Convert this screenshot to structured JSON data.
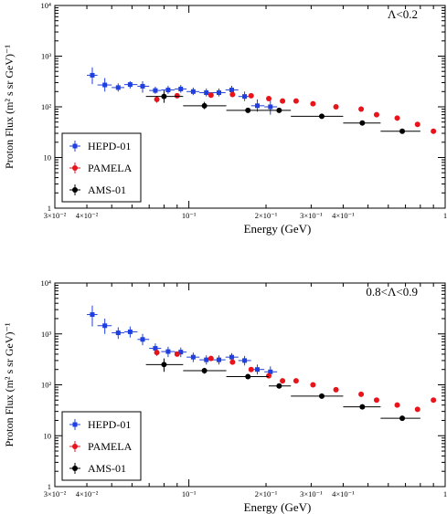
{
  "colors": {
    "hepd": "#1f3fe0",
    "pamela": "#e8141c",
    "ams": "#000000",
    "axis": "#000000",
    "legend_border": "#000000"
  },
  "chart_data": [
    {
      "type": "scatter",
      "annotation": "Λ<0.2",
      "xlabel": "Energy (GeV)",
      "ylabel": "Proton Flux (m² s sr GeV)⁻¹",
      "xscale": "log",
      "yscale": "log",
      "xlim": [
        0.03,
        1.0
      ],
      "ylim": [
        1,
        10000
      ],
      "legend": "bottom-left",
      "x_tick_labels": [
        "3×10⁻²",
        "4×10⁻²",
        "10⁻¹",
        "2×10⁻¹",
        "3×10⁻¹",
        "4×10⁻¹",
        "1"
      ],
      "y_tick_labels": [
        "1",
        "10",
        "10²",
        "10³",
        "10⁴"
      ],
      "series": [
        {
          "name": "HEPD-01",
          "key": "hepd",
          "marker": "square",
          "points": [
            {
              "x": 0.042,
              "y": 420,
              "xlo": 0.04,
              "xhi": 0.044,
              "ylo": 280,
              "yhi": 600
            },
            {
              "x": 0.047,
              "y": 270,
              "xlo": 0.044,
              "xhi": 0.05,
              "ylo": 200,
              "yhi": 370
            },
            {
              "x": 0.053,
              "y": 240,
              "xlo": 0.05,
              "xhi": 0.056,
              "ylo": 200,
              "yhi": 290
            },
            {
              "x": 0.059,
              "y": 275,
              "xlo": 0.056,
              "xhi": 0.063,
              "ylo": 230,
              "yhi": 320
            },
            {
              "x": 0.066,
              "y": 255,
              "xlo": 0.063,
              "xhi": 0.07,
              "ylo": 190,
              "yhi": 320
            },
            {
              "x": 0.074,
              "y": 210,
              "xlo": 0.07,
              "xhi": 0.078,
              "ylo": 180,
              "yhi": 250
            },
            {
              "x": 0.083,
              "y": 215,
              "xlo": 0.078,
              "xhi": 0.088,
              "ylo": 180,
              "yhi": 260
            },
            {
              "x": 0.093,
              "y": 225,
              "xlo": 0.088,
              "xhi": 0.098,
              "ylo": 190,
              "yhi": 270
            },
            {
              "x": 0.104,
              "y": 200,
              "xlo": 0.098,
              "xhi": 0.11,
              "ylo": 170,
              "yhi": 240
            },
            {
              "x": 0.117,
              "y": 190,
              "xlo": 0.11,
              "xhi": 0.124,
              "ylo": 160,
              "yhi": 230
            },
            {
              "x": 0.131,
              "y": 190,
              "xlo": 0.124,
              "xhi": 0.139,
              "ylo": 160,
              "yhi": 230
            },
            {
              "x": 0.147,
              "y": 215,
              "xlo": 0.139,
              "xhi": 0.156,
              "ylo": 180,
              "yhi": 260
            },
            {
              "x": 0.165,
              "y": 160,
              "xlo": 0.156,
              "xhi": 0.175,
              "ylo": 130,
              "yhi": 200
            },
            {
              "x": 0.185,
              "y": 105,
              "xlo": 0.175,
              "xhi": 0.197,
              "ylo": 80,
              "yhi": 140
            },
            {
              "x": 0.208,
              "y": 100,
              "xlo": 0.197,
              "xhi": 0.221,
              "ylo": 70,
              "yhi": 140
            }
          ]
        },
        {
          "name": "PAMELA",
          "key": "pamela",
          "marker": "circle",
          "points": [
            {
              "x": 0.075,
              "y": 140,
              "ylo": 120,
              "yhi": 165
            },
            {
              "x": 0.09,
              "y": 165
            },
            {
              "x": 0.122,
              "y": 170
            },
            {
              "x": 0.148,
              "y": 175
            },
            {
              "x": 0.175,
              "y": 165
            },
            {
              "x": 0.205,
              "y": 145
            },
            {
              "x": 0.232,
              "y": 130
            },
            {
              "x": 0.262,
              "y": 130
            },
            {
              "x": 0.305,
              "y": 115
            },
            {
              "x": 0.375,
              "y": 100
            },
            {
              "x": 0.47,
              "y": 90
            },
            {
              "x": 0.54,
              "y": 70
            },
            {
              "x": 0.65,
              "y": 60
            },
            {
              "x": 0.78,
              "y": 45
            },
            {
              "x": 0.9,
              "y": 33
            }
          ]
        },
        {
          "name": "AMS-01",
          "key": "ams",
          "marker": "circle",
          "points": [
            {
              "x": 0.08,
              "y": 160,
              "xlo": 0.068,
              "xhi": 0.095,
              "ylo": 120,
              "yhi": 210
            },
            {
              "x": 0.115,
              "y": 105,
              "xlo": 0.095,
              "xhi": 0.14,
              "ylo": 90,
              "yhi": 125
            },
            {
              "x": 0.17,
              "y": 85,
              "xlo": 0.14,
              "xhi": 0.205,
              "ylo": 80,
              "yhi": 92
            },
            {
              "x": 0.225,
              "y": 85,
              "xlo": 0.205,
              "xhi": 0.25,
              "ylo": 80,
              "yhi": 92
            },
            {
              "x": 0.33,
              "y": 65,
              "xlo": 0.25,
              "xhi": 0.4,
              "ylo": 61,
              "yhi": 70
            },
            {
              "x": 0.475,
              "y": 48,
              "xlo": 0.4,
              "xhi": 0.56,
              "ylo": 45,
              "yhi": 51
            },
            {
              "x": 0.68,
              "y": 33,
              "xlo": 0.56,
              "xhi": 0.8,
              "ylo": 31,
              "yhi": 35
            }
          ]
        }
      ]
    },
    {
      "type": "scatter",
      "annotation": "0.8<Λ<0.9",
      "xlabel": "Energy (GeV)",
      "ylabel": "Proton Flux (m² s sr GeV)⁻¹",
      "xscale": "log",
      "yscale": "log",
      "xlim": [
        0.03,
        1.0
      ],
      "ylim": [
        1,
        10000
      ],
      "legend": "bottom-left",
      "x_tick_labels": [
        "3×10⁻²",
        "4×10⁻²",
        "10⁻¹",
        "2×10⁻¹",
        "3×10⁻¹",
        "4×10⁻¹",
        "1"
      ],
      "y_tick_labels": [
        "1",
        "10",
        "10²",
        "10³",
        "10⁴"
      ],
      "series": [
        {
          "name": "HEPD-01",
          "key": "hepd",
          "marker": "square",
          "points": [
            {
              "x": 0.042,
              "y": 2400,
              "xlo": 0.04,
              "xhi": 0.044,
              "ylo": 1400,
              "yhi": 3600
            },
            {
              "x": 0.047,
              "y": 1450,
              "xlo": 0.044,
              "xhi": 0.05,
              "ylo": 1000,
              "yhi": 2000
            },
            {
              "x": 0.053,
              "y": 1050,
              "xlo": 0.05,
              "xhi": 0.056,
              "ylo": 800,
              "yhi": 1350
            },
            {
              "x": 0.059,
              "y": 1100,
              "xlo": 0.056,
              "xhi": 0.063,
              "ylo": 850,
              "yhi": 1400
            },
            {
              "x": 0.066,
              "y": 780,
              "xlo": 0.063,
              "xhi": 0.07,
              "ylo": 600,
              "yhi": 1000
            },
            {
              "x": 0.074,
              "y": 520,
              "xlo": 0.07,
              "xhi": 0.078,
              "ylo": 400,
              "yhi": 650
            },
            {
              "x": 0.083,
              "y": 450,
              "xlo": 0.078,
              "xhi": 0.088,
              "ylo": 350,
              "yhi": 560
            },
            {
              "x": 0.093,
              "y": 440,
              "xlo": 0.088,
              "xhi": 0.098,
              "ylo": 350,
              "yhi": 540
            },
            {
              "x": 0.104,
              "y": 350,
              "xlo": 0.098,
              "xhi": 0.11,
              "ylo": 280,
              "yhi": 430
            },
            {
              "x": 0.117,
              "y": 310,
              "xlo": 0.11,
              "xhi": 0.124,
              "ylo": 250,
              "yhi": 380
            },
            {
              "x": 0.131,
              "y": 310,
              "xlo": 0.124,
              "xhi": 0.139,
              "ylo": 250,
              "yhi": 380
            },
            {
              "x": 0.147,
              "y": 350,
              "xlo": 0.139,
              "xhi": 0.156,
              "ylo": 290,
              "yhi": 420
            },
            {
              "x": 0.165,
              "y": 300,
              "xlo": 0.156,
              "xhi": 0.175,
              "ylo": 240,
              "yhi": 370
            },
            {
              "x": 0.185,
              "y": 200,
              "xlo": 0.175,
              "xhi": 0.197,
              "ylo": 160,
              "yhi": 250
            },
            {
              "x": 0.208,
              "y": 180,
              "xlo": 0.197,
              "xhi": 0.221,
              "ylo": 140,
              "yhi": 230
            }
          ]
        },
        {
          "name": "PAMELA",
          "key": "pamela",
          "marker": "circle",
          "points": [
            {
              "x": 0.075,
              "y": 430,
              "ylo": 370,
              "yhi": 500
            },
            {
              "x": 0.09,
              "y": 400
            },
            {
              "x": 0.122,
              "y": 330
            },
            {
              "x": 0.148,
              "y": 280
            },
            {
              "x": 0.175,
              "y": 200
            },
            {
              "x": 0.205,
              "y": 150
            },
            {
              "x": 0.232,
              "y": 120
            },
            {
              "x": 0.262,
              "y": 120
            },
            {
              "x": 0.305,
              "y": 100
            },
            {
              "x": 0.375,
              "y": 80
            },
            {
              "x": 0.47,
              "y": 65
            },
            {
              "x": 0.54,
              "y": 50
            },
            {
              "x": 0.65,
              "y": 40
            },
            {
              "x": 0.78,
              "y": 33
            },
            {
              "x": 0.9,
              "y": 50
            }
          ]
        },
        {
          "name": "AMS-01",
          "key": "ams",
          "marker": "circle",
          "points": [
            {
              "x": 0.08,
              "y": 250,
              "xlo": 0.068,
              "xhi": 0.095,
              "ylo": 180,
              "yhi": 330
            },
            {
              "x": 0.115,
              "y": 190,
              "xlo": 0.095,
              "xhi": 0.14,
              "ylo": 165,
              "yhi": 215
            },
            {
              "x": 0.17,
              "y": 145,
              "xlo": 0.14,
              "xhi": 0.205,
              "ylo": 135,
              "yhi": 155
            },
            {
              "x": 0.225,
              "y": 95,
              "xlo": 0.205,
              "xhi": 0.25,
              "ylo": 88,
              "yhi": 102
            },
            {
              "x": 0.33,
              "y": 60,
              "xlo": 0.25,
              "xhi": 0.4,
              "ylo": 56,
              "yhi": 64
            },
            {
              "x": 0.475,
              "y": 37,
              "xlo": 0.4,
              "xhi": 0.56,
              "ylo": 34,
              "yhi": 40
            },
            {
              "x": 0.68,
              "y": 22,
              "xlo": 0.56,
              "xhi": 0.8,
              "ylo": 20,
              "yhi": 24
            }
          ]
        }
      ]
    }
  ]
}
